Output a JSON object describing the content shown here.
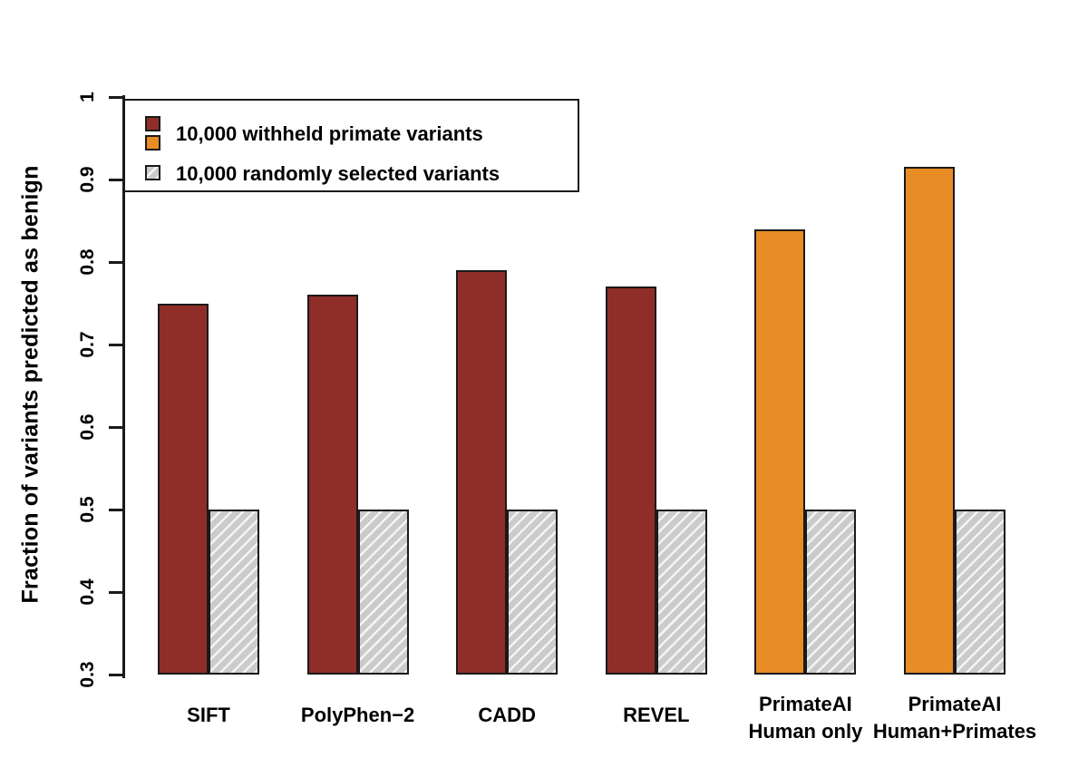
{
  "chart_data": {
    "type": "bar",
    "title": "",
    "xlabel": "",
    "ylabel": "Fraction of variants predicted as benign",
    "ylim": [
      0.3,
      1.0
    ],
    "y_ticks": [
      "1",
      "0.9",
      "0.8",
      "0.7",
      "0.6",
      "0.5",
      "0.4",
      "0.3"
    ],
    "grid": false,
    "legend_position": "top-left",
    "categories": [
      "SIFT",
      "PolyPhen−2",
      "CADD",
      "REVEL",
      "PrimateAI Human only",
      "PrimateAI Human+Primates"
    ],
    "category_lines": [
      [
        "SIFT"
      ],
      [
        "PolyPhen−2"
      ],
      [
        "CADD"
      ],
      [
        "REVEL"
      ],
      [
        "PrimateAI",
        "Human only"
      ],
      [
        "PrimateAI",
        "Human+Primates"
      ]
    ],
    "series": [
      {
        "name": "10,000 withheld primate variants",
        "values": [
          0.75,
          0.76,
          0.79,
          0.77,
          0.84,
          0.915
        ],
        "style": "solid",
        "bar_colors": [
          "#8F2D28",
          "#8F2D28",
          "#8F2D28",
          "#8F2D28",
          "#E88C25",
          "#E88C25"
        ]
      },
      {
        "name": "10,000 randomly selected variants",
        "values": [
          0.5,
          0.5,
          0.5,
          0.5,
          0.5,
          0.5
        ],
        "style": "diagonal-hatch",
        "fill": "#CBCBCB",
        "hatch_color": "#F4F4F4"
      }
    ],
    "colors": {
      "withheld_red": "#8F2D28",
      "withheld_orange": "#E88C25",
      "random_gray": "#CBCBCB",
      "hatch_line": "#F4F4F4",
      "bar_outline": "#1A1A1A"
    }
  }
}
